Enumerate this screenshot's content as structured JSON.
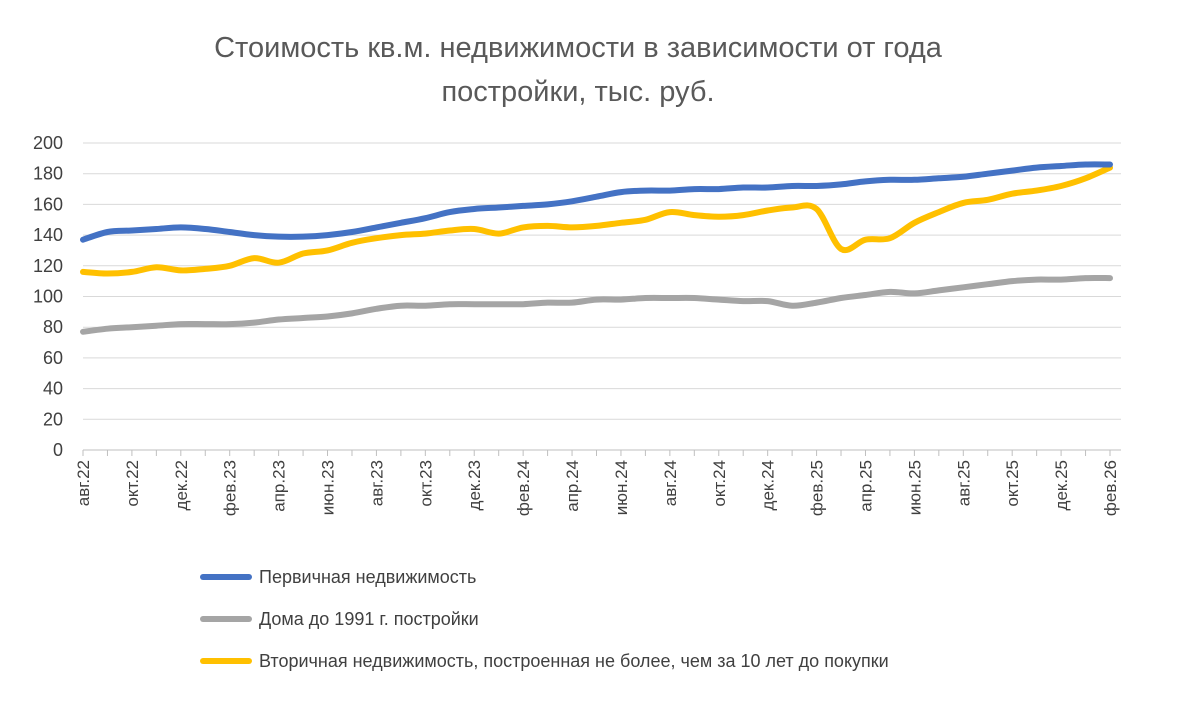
{
  "chart_data": {
    "type": "line",
    "title_lines": [
      "Стоимость кв.м. недвижимости в зависимости от года",
      "постройки, тыс. руб."
    ],
    "xlabel": "",
    "ylabel": "",
    "ylim": [
      0,
      200
    ],
    "yticks": [
      0,
      20,
      40,
      60,
      80,
      100,
      120,
      140,
      160,
      180,
      200
    ],
    "categories": [
      "авг.22",
      "сен.22",
      "окт.22",
      "ноя.22",
      "дек.22",
      "янв.23",
      "фев.23",
      "мар.23",
      "апр.23",
      "май.23",
      "июн.23",
      "июл.23",
      "авг.23",
      "сен.23",
      "окт.23",
      "ноя.23",
      "дек.23",
      "янв.24",
      "фев.24",
      "мар.24",
      "апр.24",
      "май.24",
      "июн.24",
      "июл.24",
      "авг.24",
      "сен.24",
      "окт.24",
      "ноя.24",
      "дек.24",
      "янв.25",
      "фев.25",
      "мар.25",
      "апр.25",
      "май.25",
      "июн.25",
      "июл.25",
      "авг.25",
      "сен.25",
      "окт.25",
      "ноя.25",
      "дек.25",
      "янв.26",
      "фев.26"
    ],
    "xtick_labels": [
      "авг.22",
      "окт.22",
      "дек.22",
      "фев.23",
      "апр.23",
      "июн.23",
      "авг.23",
      "окт.23",
      "дек.23",
      "фев.24",
      "апр.24",
      "июн.24",
      "авг.24",
      "окт.24",
      "дек.24",
      "фев.25",
      "апр.25",
      "июн.25",
      "авг.25",
      "окт.25",
      "дек.25",
      "фев.26"
    ],
    "series": [
      {
        "name": "Первичная недвижимость",
        "color": "#4472c4",
        "values": [
          137,
          142,
          143,
          144,
          145,
          144,
          142,
          140,
          139,
          139,
          140,
          142,
          145,
          148,
          151,
          155,
          157,
          158,
          159,
          160,
          162,
          165,
          168,
          169,
          169,
          170,
          170,
          171,
          171,
          172,
          172,
          173,
          175,
          176,
          176,
          177,
          178,
          180,
          182,
          184,
          185,
          186,
          186
        ]
      },
      {
        "name": "Дома до 1991 г. постройки",
        "color": "#a5a5a5",
        "values": [
          77,
          79,
          80,
          81,
          82,
          82,
          82,
          83,
          85,
          86,
          87,
          89,
          92,
          94,
          94,
          95,
          95,
          95,
          95,
          96,
          96,
          98,
          98,
          99,
          99,
          99,
          98,
          97,
          97,
          94,
          96,
          99,
          101,
          103,
          102,
          104,
          106,
          108,
          110,
          111,
          111,
          112,
          112
        ]
      },
      {
        "name": "Вторичная недвижимость, построенная не более, чем за 10 лет до покупки",
        "color": "#ffc000",
        "values": [
          116,
          115,
          116,
          119,
          117,
          118,
          120,
          125,
          122,
          128,
          130,
          135,
          138,
          140,
          141,
          143,
          144,
          141,
          145,
          146,
          145,
          146,
          148,
          150,
          155,
          153,
          152,
          153,
          156,
          158,
          157,
          131,
          137,
          138,
          148,
          155,
          161,
          163,
          167,
          169,
          172,
          177,
          184
        ]
      }
    ],
    "legend_position": "bottom"
  }
}
